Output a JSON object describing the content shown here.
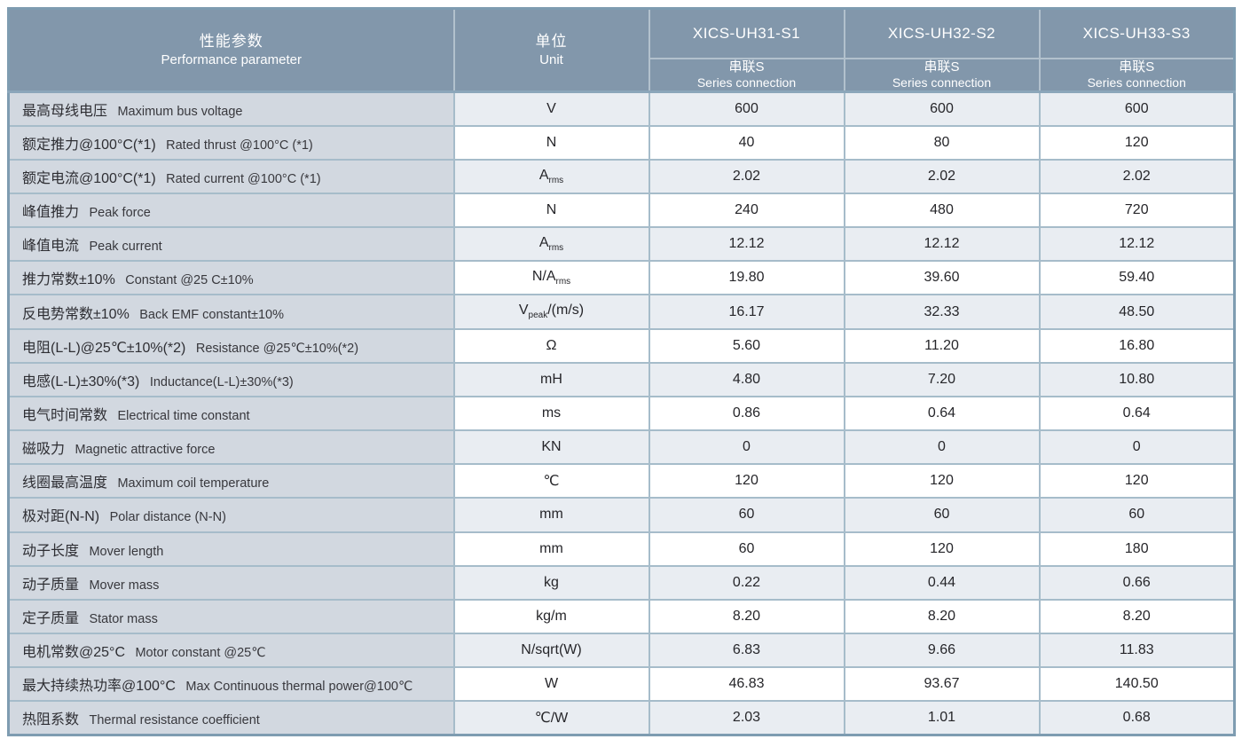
{
  "colors": {
    "header_bg": "#8297AB",
    "header_text": "#FFFFFF",
    "param_col_bg": "#D2D8E0",
    "row_shade_bg": "#E9EDF2",
    "row_plain_bg": "#FFFFFF",
    "grid_line": "#A6BCCA",
    "outer_border": "#7E9CB1",
    "body_text": "#26262A"
  },
  "table": {
    "header": {
      "param_zh": "性能参数",
      "param_en": "Performance parameter",
      "unit_zh": "单位",
      "unit_en": "Unit",
      "models": [
        "XICS-UH31-S1",
        "XICS-UH32-S2",
        "XICS-UH33-S3"
      ],
      "connection_zh": "串联S",
      "connection_en": "Series connection"
    },
    "rows": [
      {
        "zh": "最高母线电压",
        "en": "Maximum bus voltage",
        "unit": "V",
        "values": [
          "600",
          "600",
          "600"
        ]
      },
      {
        "zh": "额定推力@100°C(*1)",
        "en": "Rated thrust @100°C (*1)",
        "unit": "N",
        "values": [
          "40",
          "80",
          "120"
        ]
      },
      {
        "zh": "额定电流@100°C(*1)",
        "en": "Rated current @100°C (*1)",
        "unit": "A{rms}",
        "values": [
          "2.02",
          "2.02",
          "2.02"
        ]
      },
      {
        "zh": "峰值推力",
        "en": "Peak force",
        "unit": "N",
        "values": [
          "240",
          "480",
          "720"
        ]
      },
      {
        "zh": "峰值电流",
        "en": "Peak current",
        "unit": "A{rms}",
        "values": [
          "12.12",
          "12.12",
          "12.12"
        ]
      },
      {
        "zh": "推力常数±10%",
        "en": "Constant @25 C±10%",
        "unit": "N/A{rms}",
        "values": [
          "19.80",
          "39.60",
          "59.40"
        ]
      },
      {
        "zh": "反电势常数±10%",
        "en": "Back EMF constant±10%",
        "unit": "V{peak}/(m/s)",
        "values": [
          "16.17",
          "32.33",
          "48.50"
        ]
      },
      {
        "zh": "电阻(L-L)@25℃±10%(*2)",
        "en": "Resistance @25℃±10%(*2)",
        "unit": "Ω",
        "values": [
          "5.60",
          "11.20",
          "16.80"
        ]
      },
      {
        "zh": "电感(L-L)±30%(*3)",
        "en": "Inductance(L-L)±30%(*3)",
        "unit": "mH",
        "values": [
          "4.80",
          "7.20",
          "10.80"
        ]
      },
      {
        "zh": "电气时间常数",
        "en": "Electrical time constant",
        "unit": "ms",
        "values": [
          "0.86",
          "0.64",
          "0.64"
        ]
      },
      {
        "zh": "磁吸力",
        "en": "Magnetic attractive force",
        "unit": "KN",
        "values": [
          "0",
          "0",
          "0"
        ]
      },
      {
        "zh": "线圈最高温度",
        "en": "Maximum coil temperature",
        "unit": "℃",
        "values": [
          "120",
          "120",
          "120"
        ]
      },
      {
        "zh": "极对距(N-N)",
        "en": "Polar distance (N-N)",
        "unit": "mm",
        "values": [
          "60",
          "60",
          "60"
        ]
      },
      {
        "zh": "动子长度",
        "en": "Mover length",
        "unit": "mm",
        "values": [
          "60",
          "120",
          "180"
        ]
      },
      {
        "zh": "动子质量",
        "en": "Mover mass",
        "unit": "kg",
        "values": [
          "0.22",
          "0.44",
          "0.66"
        ]
      },
      {
        "zh": "定子质量",
        "en": "Stator mass",
        "unit": "kg/m",
        "values": [
          "8.20",
          "8.20",
          "8.20"
        ]
      },
      {
        "zh": "电机常数@25°C",
        "en": "Motor constant @25℃",
        "unit": "N/sqrt(W)",
        "values": [
          "6.83",
          "9.66",
          "11.83"
        ]
      },
      {
        "zh": "最大持续热功率@100°C",
        "en": "Max Continuous thermal power@100℃",
        "unit": "W",
        "values": [
          "46.83",
          "93.67",
          "140.50"
        ]
      },
      {
        "zh": "热阻系数",
        "en": "Thermal resistance coefficient",
        "unit": "℃/W",
        "values": [
          "2.03",
          "1.01",
          "0.68"
        ]
      }
    ]
  }
}
